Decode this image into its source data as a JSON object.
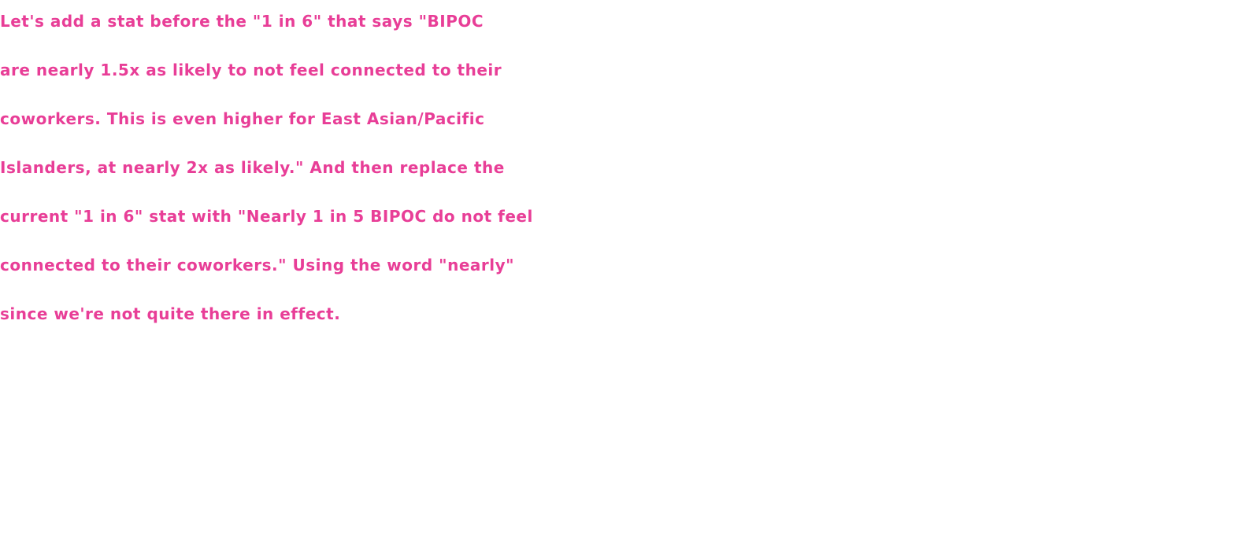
{
  "accent_color": "#e83e97",
  "message": {
    "lines": [
      "Let's add a stat before the \"1 in 6\" that says \"BIPOC",
      "are nearly 1.5x as likely to not feel connected to their",
      "coworkers. This is even higher for East Asian/Pacific",
      "Islanders, at nearly 2x as likely.\" And then replace the",
      "current \"1 in 6\" stat with \"Nearly 1 in 5 BIPOC do not feel",
      "connected to their coworkers.\" Using the word \"nearly\"",
      "since we're not quite there in effect."
    ]
  }
}
